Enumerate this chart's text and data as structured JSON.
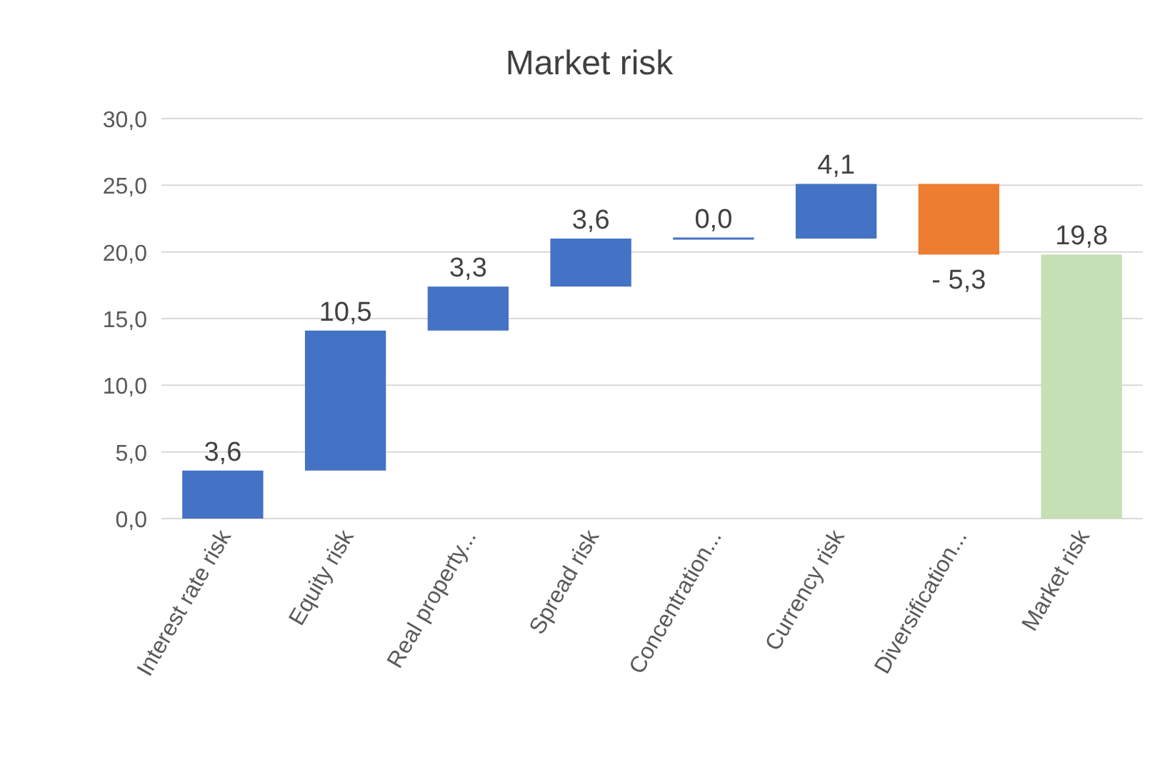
{
  "chart_data": {
    "type": "bar",
    "title": "Market risk",
    "categories": [
      "Interest rate risk",
      "Equity risk",
      "Real property...",
      "Spread risk",
      "Concentration...",
      "Currency risk",
      "Diversification...",
      "Market risk"
    ],
    "values": [
      3.6,
      10.5,
      3.3,
      3.6,
      0.0,
      4.1,
      -5.3,
      19.8
    ],
    "base": [
      0,
      3.6,
      14.1,
      17.4,
      21.0,
      21.0,
      25.1,
      0
    ],
    "colors": [
      "#4472c4",
      "#4472c4",
      "#4472c4",
      "#4472c4",
      "#4472c4",
      "#4472c4",
      "#ed7d31",
      "#c5e0b4"
    ],
    "value_labels": [
      "3,6",
      "10,5",
      "3,3",
      "3,6",
      "0,0",
      "4,1",
      "- 5,3",
      "19,8"
    ],
    "ylim": [
      0,
      30
    ],
    "yticks": [
      {
        "value": 0,
        "label": "0,0"
      },
      {
        "value": 5,
        "label": "5,0"
      },
      {
        "value": 10,
        "label": "10,0"
      },
      {
        "value": 15,
        "label": "15,0"
      },
      {
        "value": 20,
        "label": "20,0"
      },
      {
        "value": 25,
        "label": "25,0"
      },
      {
        "value": 30,
        "label": "30,0"
      }
    ],
    "grid": true
  }
}
